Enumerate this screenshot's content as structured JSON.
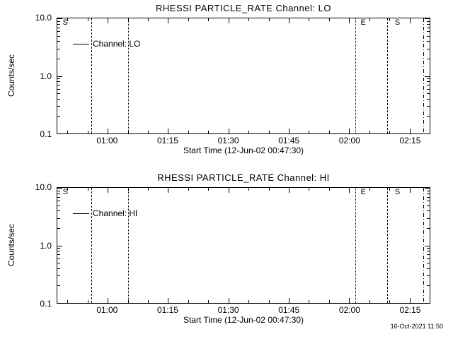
{
  "page": {
    "background": "#ffffff",
    "foreground": "#000000",
    "timestamp": "16-Oct-2021 11:50"
  },
  "chart_data": [
    {
      "type": "line",
      "title": "RHESSI PARTICLE_RATE Channel: LO",
      "xlabel": "Start Time (12-Jun-02 00:47:30)",
      "ylabel": "Counts/sec",
      "legend_label": "Channel: LO",
      "legend_position": "upper-left",
      "grid": false,
      "y_scale": "log",
      "ylim": [
        0.1,
        10.0
      ],
      "yticks": [
        0.1,
        1.0,
        10.0
      ],
      "ytick_labels": [
        "0.1",
        "1.0",
        "10.0"
      ],
      "xlim_minutes_of_day": [
        47.5,
        140.0
      ],
      "x_minor_step_minutes": 5,
      "xticks": [
        {
          "minutes": 60,
          "label": "01:00"
        },
        {
          "minutes": 75,
          "label": "01:15"
        },
        {
          "minutes": 90,
          "label": "01:30"
        },
        {
          "minutes": 105,
          "label": "01:45"
        },
        {
          "minutes": 120,
          "label": "02:00"
        },
        {
          "minutes": 135,
          "label": "02:15"
        }
      ],
      "series": [],
      "event_lines": [
        {
          "minutes": 56.0,
          "style": "dashed"
        },
        {
          "minutes": 65.0,
          "style": "dotted"
        },
        {
          "minutes": 121.5,
          "style": "dotted"
        },
        {
          "minutes": 129.5,
          "style": "dashed"
        },
        {
          "minutes": 138.5,
          "style": "dashdot"
        }
      ],
      "annotations": [
        {
          "minutes": 48.5,
          "text": "S"
        },
        {
          "minutes": 122.5,
          "text": "E"
        },
        {
          "minutes": 131.0,
          "text": "S"
        }
      ]
    },
    {
      "type": "line",
      "title": "RHESSI PARTICLE_RATE Channel: HI",
      "xlabel": "Start Time (12-Jun-02 00:47:30)",
      "ylabel": "Counts/sec",
      "legend_label": "Channel: HI",
      "legend_position": "upper-left",
      "grid": false,
      "y_scale": "log",
      "ylim": [
        0.1,
        10.0
      ],
      "yticks": [
        0.1,
        1.0,
        10.0
      ],
      "ytick_labels": [
        "0.1",
        "1.0",
        "10.0"
      ],
      "xlim_minutes_of_day": [
        47.5,
        140.0
      ],
      "x_minor_step_minutes": 5,
      "xticks": [
        {
          "minutes": 60,
          "label": "01:00"
        },
        {
          "minutes": 75,
          "label": "01:15"
        },
        {
          "minutes": 90,
          "label": "01:30"
        },
        {
          "minutes": 105,
          "label": "01:45"
        },
        {
          "minutes": 120,
          "label": "02:00"
        },
        {
          "minutes": 135,
          "label": "02:15"
        }
      ],
      "series": [],
      "event_lines": [
        {
          "minutes": 56.0,
          "style": "dashed"
        },
        {
          "minutes": 65.0,
          "style": "dotted"
        },
        {
          "minutes": 121.5,
          "style": "dotted"
        },
        {
          "minutes": 129.5,
          "style": "dashed"
        },
        {
          "minutes": 138.5,
          "style": "dashdot"
        }
      ],
      "annotations": [
        {
          "minutes": 48.5,
          "text": "S"
        },
        {
          "minutes": 122.5,
          "text": "E"
        },
        {
          "minutes": 131.0,
          "text": "S"
        }
      ]
    }
  ]
}
